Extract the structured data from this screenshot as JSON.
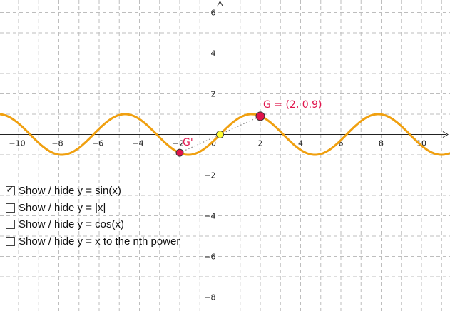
{
  "graph": {
    "x_ticks": [
      -10,
      -8,
      -6,
      -4,
      -2,
      0,
      2,
      4,
      6,
      8,
      10
    ],
    "y_ticks": [
      -8,
      -6,
      -4,
      -2,
      2,
      4,
      6
    ],
    "curve_color": "#f0a010",
    "point_color": "#e0144c",
    "origin_point_color": "#ffff33",
    "point_G": {
      "name": "G",
      "x": 2,
      "y": 0.9,
      "label": "G = (2, 0.9)"
    },
    "point_G_prime": {
      "name": "G'",
      "x": -2,
      "y": -0.9,
      "label": "G'"
    },
    "origin_point": {
      "x": 0,
      "y": 0
    }
  },
  "controls": [
    {
      "label": "Show / hide y = sin(x)",
      "checked": true
    },
    {
      "label": "Show / hide y = |x|",
      "checked": false
    },
    {
      "label": "Show / hide y = cos(x)",
      "checked": false
    },
    {
      "label": "Show / hide y = x to the nth power",
      "checked": false
    }
  ]
}
